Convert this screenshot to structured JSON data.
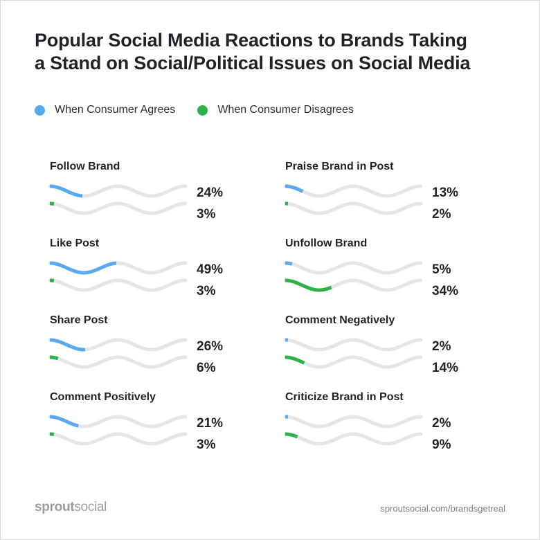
{
  "title": {
    "line1": "Popular Social Media Reactions to Brands Taking",
    "line2": "a Stand on Social/Political Issues on Social Media"
  },
  "legend": {
    "agree_label": "When Consumer Agrees",
    "disagree_label": "When Consumer Disagrees"
  },
  "colors": {
    "agree": "#58a9f0",
    "disagree": "#2db24a",
    "track": "#e6e6e6",
    "text": "#1f2328"
  },
  "chart_data": {
    "type": "bar",
    "title": "Popular Social Media Reactions to Brands Taking a Stand on Social/Political Issues on Social Media",
    "unit": "%",
    "ylim": [
      0,
      100
    ],
    "categories": [
      "Follow Brand",
      "Like Post",
      "Share Post",
      "Comment Positively",
      "Praise Brand in Post",
      "Unfollow Brand",
      "Comment Negatively",
      "Criticize Brand in Post"
    ],
    "series": [
      {
        "name": "When Consumer Agrees",
        "values": [
          24,
          49,
          26,
          21,
          13,
          5,
          2,
          2
        ]
      },
      {
        "name": "When Consumer Disagrees",
        "values": [
          3,
          3,
          6,
          3,
          2,
          34,
          14,
          9
        ]
      }
    ],
    "labels": {
      "agree": [
        "24%",
        "49%",
        "26%",
        "21%",
        "13%",
        "5%",
        "2%",
        "2%"
      ],
      "disagree": [
        "3%",
        "3%",
        "6%",
        "3%",
        "2%",
        "34%",
        "14%",
        "9%"
      ]
    }
  },
  "footer": {
    "logo_a": "sprout",
    "logo_b": "social",
    "url": "sproutsocial.com/brandsgetreal"
  }
}
